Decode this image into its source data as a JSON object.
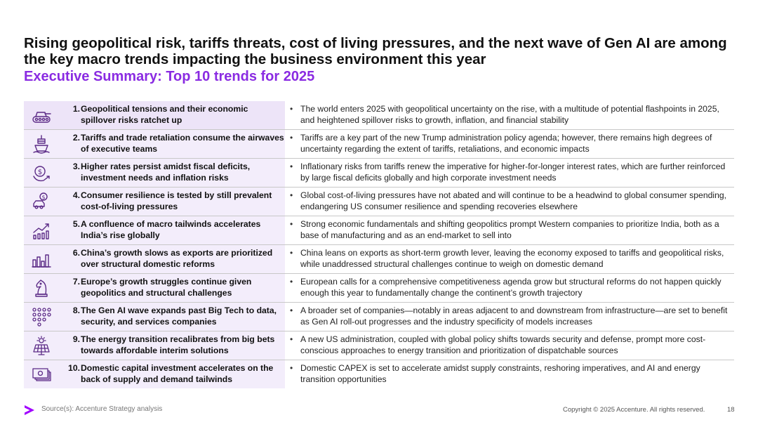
{
  "header": {
    "title": "Rising geopolitical risk, tariffs threats, cost of living pressures, and the next wave of Gen AI are among the key macro trends impacting the business environment this year",
    "subtitle": "Executive Summary: Top 10 trends for 2025"
  },
  "trends": [
    {
      "number": "1.",
      "title": "Geopolitical tensions and their economic spillover risks ratchet up",
      "bullet": "•",
      "description": "The world enters 2025 with geopolitical uncertainty on the rise, with a multitude of potential flashpoints in 2025, and heightened spillover risks to growth, inflation, and financial stability",
      "icon": "tank-icon"
    },
    {
      "number": "2.",
      "title": "Tariffs and trade retaliation consume the airwaves of executive teams",
      "bullet": "•",
      "description": "Tariffs are a key part of the new Trump administration policy agenda; however, there remains high degrees of uncertainty regarding the extent of tariffs, retaliations, and economic impacts",
      "icon": "cargo-ship-icon"
    },
    {
      "number": "3.",
      "title": "Higher rates persist amidst fiscal deficits, investment needs and inflation risks",
      "bullet": "•",
      "description": "Inflationary risks from tariffs renew the imperative for higher-for-longer interest rates, which are further reinforced by large fiscal deficits globally and high corporate investment needs",
      "icon": "dollar-cycle-icon"
    },
    {
      "number": "4.",
      "title": "Consumer resilience is tested by still prevalent cost-of-living pressures",
      "bullet": "•",
      "description": "Global cost-of-living pressures have not abated and will continue to be a headwind to global consumer spending, endangering US consumer resilience and spending recoveries elsewhere",
      "icon": "car-dollar-icon"
    },
    {
      "number": "5.",
      "title": "A confluence of macro tailwinds accelerates India’s rise globally",
      "bullet": "•",
      "description": "Strong economic fundamentals and shifting geopolitics prompt Western companies to prioritize India, both as a base of manufacturing and as an end-market to sell into",
      "icon": "rising-chart-icon"
    },
    {
      "number": "6.",
      "title": "China’s growth slows as exports are prioritized over structural domestic reforms",
      "bullet": "•",
      "description": "China leans on exports as short-term growth lever, leaving the economy exposed to tariffs and geopolitical risks, while unaddressed structural challenges continue to weigh on domestic demand",
      "icon": "bar-chart-icon"
    },
    {
      "number": "7.",
      "title": "Europe’s growth struggles continue given geopolitics and structural challenges",
      "bullet": "•",
      "description": "European calls for a comprehensive competitiveness agenda grow but structural reforms do not happen quickly enough this year to fundamentally change the continent’s growth trajectory",
      "icon": "chess-knight-icon"
    },
    {
      "number": "8.",
      "title": "The Gen AI wave expands past Big Tech to data, security, and services companies",
      "bullet": "•",
      "description": "A broader set of companies—notably in areas adjacent to and downstream from infrastructure—are set to benefit as Gen AI roll-out progresses and the industry specificity of models increases",
      "icon": "network-dots-icon"
    },
    {
      "number": "9.",
      "title": "The energy transition recalibrates from big bets towards affordable interim solutions",
      "bullet": "•",
      "description": "A new US administration, coupled with global policy shifts towards security and defense, prompt more cost-conscious approaches to energy transition and prioritization of dispatchable sources",
      "icon": "solar-panel-icon"
    },
    {
      "number": "10.",
      "title": "Domestic capital investment accelerates on the back of supply and demand tailwinds",
      "bullet": "•",
      "description": "Domestic CAPEX is set to accelerate amidst supply constraints, reshoring imperatives, and AI and energy transition opportunities",
      "icon": "cash-stack-icon"
    }
  ],
  "footer": {
    "source": "Source(s): Accenture Strategy analysis",
    "copyright": "Copyright © 2025 Accenture. All rights reserved.",
    "page_number": "18"
  },
  "colors": {
    "accent": "#8a2be2",
    "left_cell_bg": "#f3edfb",
    "icon_stroke": "#5b2a86"
  }
}
